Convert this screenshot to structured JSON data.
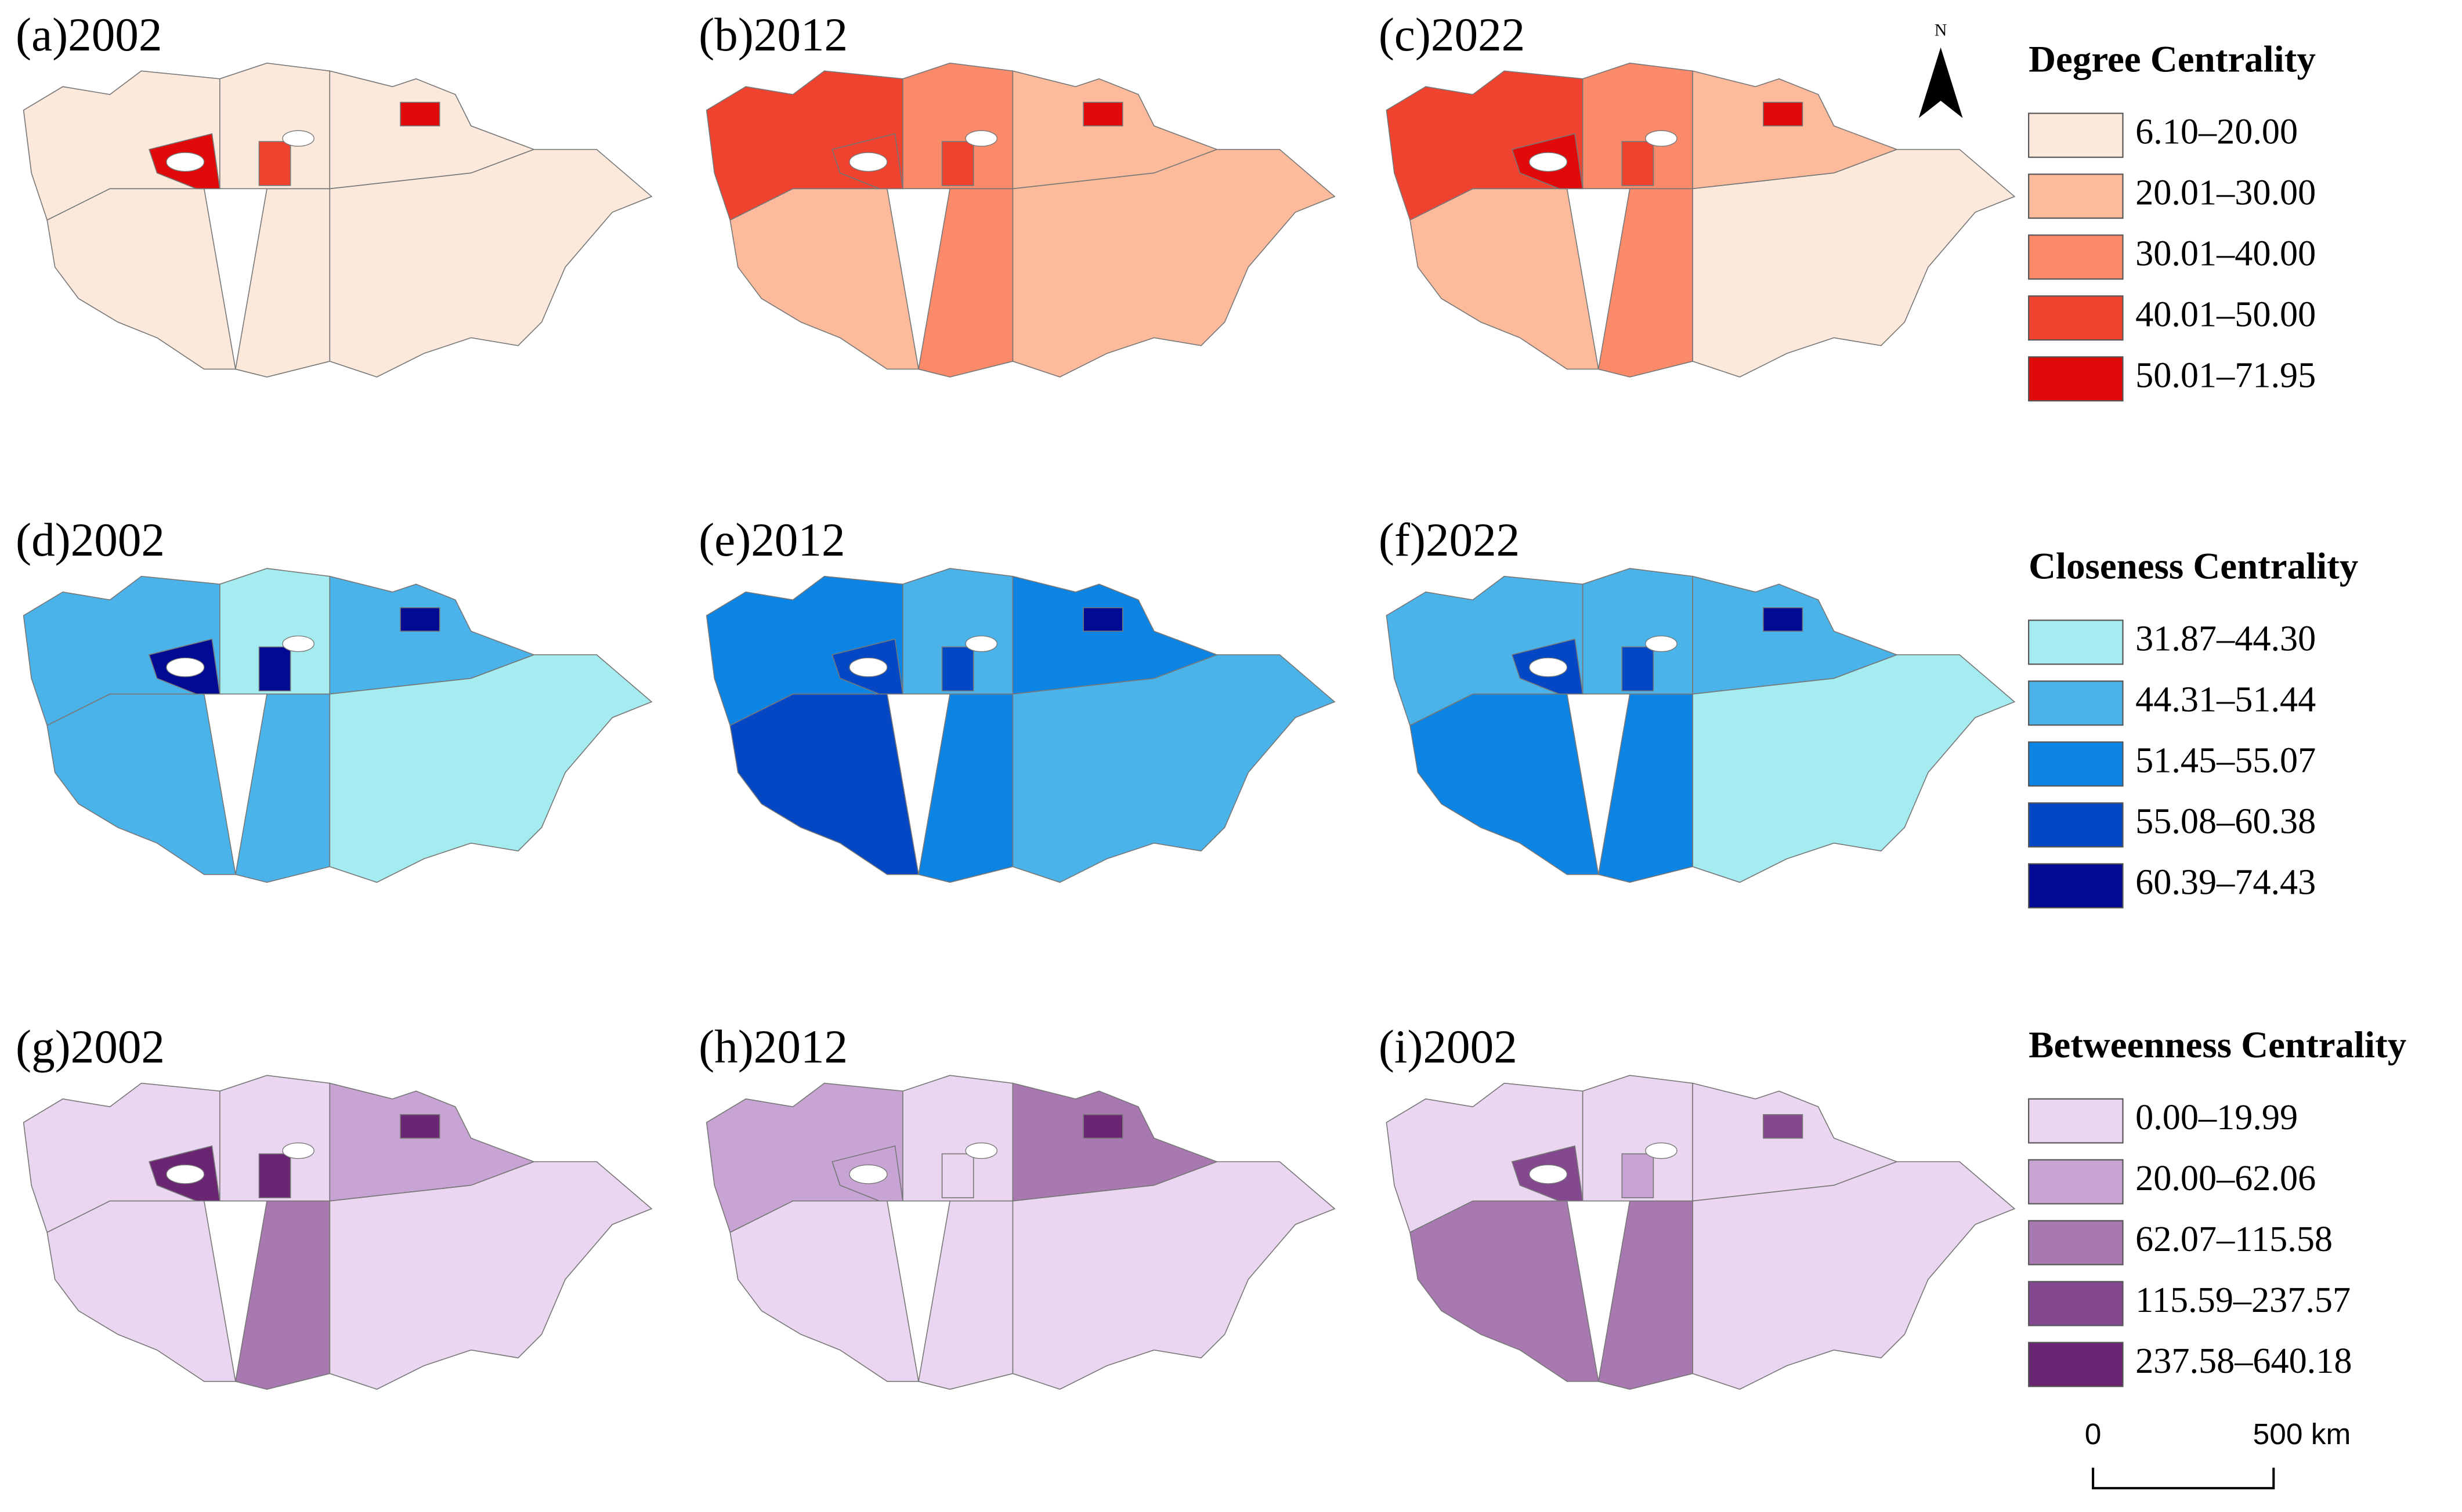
{
  "panels": [
    [
      "(a)2002",
      "(b)2012",
      "(c)2022"
    ],
    [
      "(d)2002",
      "(e)2012",
      "(f)2022"
    ],
    [
      "(g)2002",
      "(h)2012",
      "(i)2002"
    ]
  ],
  "legends": [
    {
      "title": "Degree Centrality",
      "classes": [
        {
          "label": "6.10–20.00",
          "color": "#fce9dc"
        },
        {
          "label": "20.01–30.00",
          "color": "#fdbb9b"
        },
        {
          "label": "30.01–40.00",
          "color": "#fb8a6a"
        },
        {
          "label": "40.01–50.00",
          "color": "#f0432f"
        },
        {
          "label": "50.01–71.95",
          "color": "#e00a0a"
        }
      ]
    },
    {
      "title": "Closeness Centrality",
      "classes": [
        {
          "label": "31.87–44.30",
          "color": "#a4ecef"
        },
        {
          "label": "44.31–51.44",
          "color": "#4ab3ea"
        },
        {
          "label": "51.45–55.07",
          "color": "#0c84e4"
        },
        {
          "label": "55.08–60.38",
          "color": "#0447c4"
        },
        {
          "label": "60.39–74.43",
          "color": "#010a93"
        }
      ]
    },
    {
      "title": "Betweenness Centrality",
      "classes": [
        {
          "label": "0.00–19.99",
          "color": "#ead6f0"
        },
        {
          "label": "20.00–62.06",
          "color": "#c8a4d4"
        },
        {
          "label": "62.07–115.58",
          "color": "#a878b0"
        },
        {
          "label": "115.59–237.57",
          "color": "#84488f"
        },
        {
          "label": "237.58–640.18",
          "color": "#6a2672"
        }
      ]
    }
  ],
  "north": "N",
  "scale_bar": [
    "0",
    "500 km"
  ]
}
